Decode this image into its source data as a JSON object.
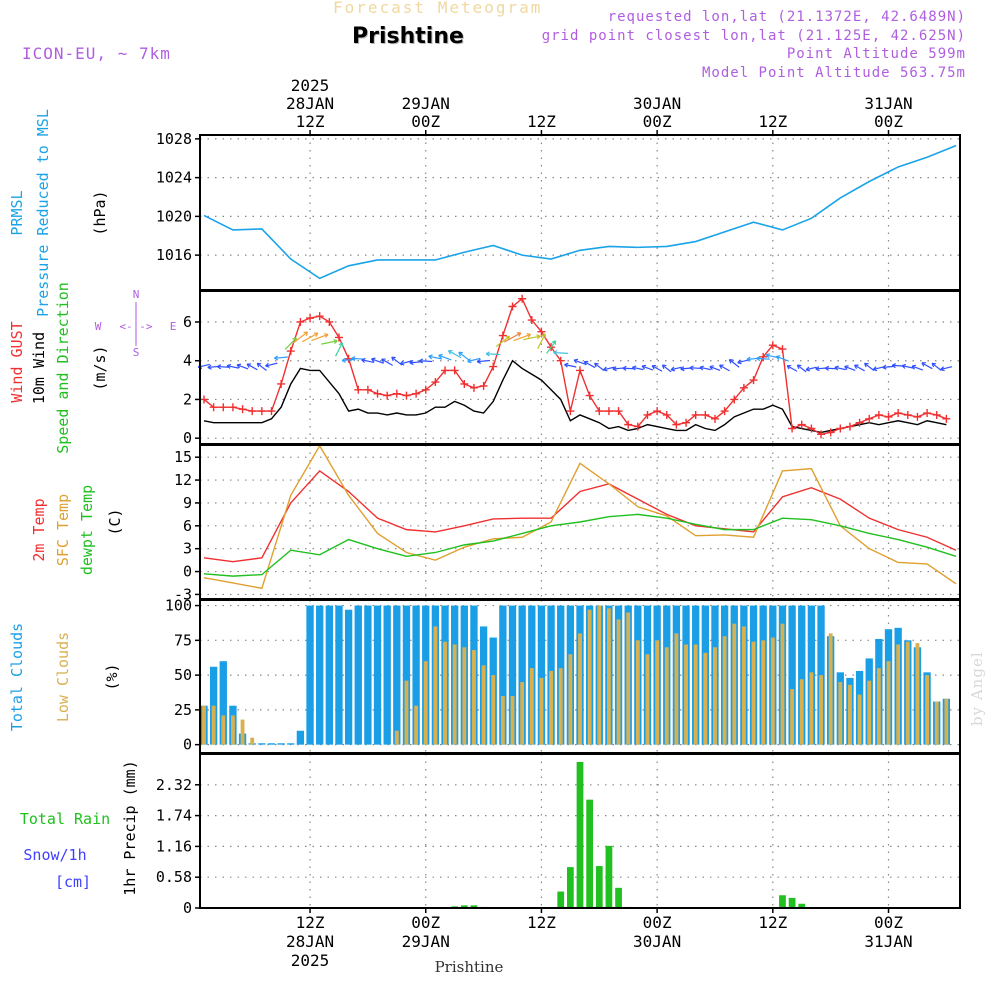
{
  "header": {
    "title": "Forecast Meteogram",
    "station": "Prishtine",
    "model": "ICON-EU, ~ 7km",
    "requested": "requested lon,lat (21.1372E, 42.6489N)",
    "grid_point": "grid point closest lon,lat (21.125E, 42.625N)",
    "point_altitude": "Point Altitude 599m",
    "model_altitude": "Model Point Altitude 563.75m"
  },
  "footer_label": "Prishtine",
  "watermark": "by Angel",
  "colors": {
    "pressure": "#1aa3e8",
    "gust": "#f03030",
    "wind": "#000000",
    "temp": "#f03030",
    "sfc_temp": "#e0a030",
    "dewpt": "#20c020",
    "total_clouds": "#1a9fe6",
    "low_clouds": "#d8b050",
    "rain": "#20c020",
    "snow": "#4040ff",
    "compass": "#b05ee0",
    "grid": "#888888"
  },
  "chart_data": [
    {
      "type": "line",
      "title": "PRMSL Pressure Reduced to MSL",
      "ylabel": "(hPa)",
      "ylim": [
        1012.4,
        1028.4
      ],
      "yticks": [
        1016,
        1020,
        1024,
        1028
      ],
      "x_hours": [
        0,
        3,
        6,
        9,
        12,
        15,
        18,
        21,
        24,
        27,
        30,
        33,
        36,
        39,
        42,
        45,
        48,
        51,
        54,
        57,
        60,
        63,
        66,
        69,
        72,
        75,
        78
      ],
      "values": [
        1020.1,
        1018.6,
        1018.7,
        1015.6,
        1013.6,
        1014.9,
        1015.5,
        1015.5,
        1015.5,
        1016.3,
        1017.0,
        1016.0,
        1015.6,
        1016.5,
        1016.9,
        1016.8,
        1016.9,
        1017.4,
        1018.4,
        1019.4,
        1018.6,
        1019.8,
        1021.9,
        1023.6,
        1025.1,
        1026.1,
        1027.3
      ]
    },
    {
      "type": "line",
      "title": "Wind GUST / 10m Wind Speed and Direction",
      "ylabel": "(m/s)",
      "ylim": [
        -0.3,
        7.6
      ],
      "yticks": [
        0,
        2,
        4,
        6
      ],
      "compass": {
        "n": "N",
        "s": "S",
        "w": "W",
        "e": "E",
        "symbol": "<-|->"
      },
      "x_hours": [
        0,
        1,
        2,
        3,
        4,
        5,
        6,
        7,
        8,
        9,
        10,
        11,
        12,
        13,
        14,
        15,
        16,
        17,
        18,
        19,
        20,
        21,
        22,
        23,
        24,
        25,
        26,
        27,
        28,
        29,
        30,
        31,
        32,
        33,
        34,
        35,
        36,
        37,
        38,
        39,
        40,
        41,
        42,
        43,
        44,
        45,
        46,
        47,
        48,
        49,
        50,
        51,
        52,
        53,
        54,
        55,
        56,
        57,
        58,
        59,
        60,
        61,
        62,
        63,
        64,
        65,
        66,
        67,
        68,
        69,
        70,
        71,
        72,
        73,
        74,
        75,
        76,
        77
      ],
      "series": [
        {
          "name": "Wind GUST",
          "values": [
            2.0,
            1.6,
            1.6,
            1.6,
            1.5,
            1.4,
            1.4,
            1.4,
            2.8,
            4.5,
            6.0,
            6.2,
            6.3,
            6.0,
            5.2,
            4.1,
            2.5,
            2.5,
            2.3,
            2.2,
            2.3,
            2.2,
            2.3,
            2.5,
            2.9,
            3.5,
            3.5,
            2.8,
            2.6,
            2.7,
            3.7,
            5.3,
            6.8,
            7.2,
            6.1,
            5.5,
            4.7,
            4.0,
            1.4,
            3.5,
            2.2,
            1.4,
            1.4,
            1.4,
            0.7,
            0.6,
            1.2,
            1.4,
            1.2,
            0.7,
            0.8,
            1.2,
            1.2,
            1.0,
            1.4,
            2.0,
            2.6,
            3.0,
            4.2,
            4.8,
            4.6,
            0.5,
            0.7,
            0.5,
            0.2,
            0.3,
            0.5,
            0.6,
            0.8,
            1.0,
            1.2,
            1.1,
            1.3,
            1.2,
            1.1,
            1.3,
            1.2,
            1.0
          ]
        },
        {
          "name": "10m Wind",
          "values": [
            0.9,
            0.8,
            0.8,
            0.8,
            0.8,
            0.8,
            0.8,
            1.0,
            1.6,
            2.8,
            3.6,
            3.5,
            3.5,
            2.9,
            2.3,
            1.4,
            1.5,
            1.3,
            1.3,
            1.2,
            1.3,
            1.2,
            1.2,
            1.3,
            1.6,
            1.6,
            1.9,
            1.7,
            1.4,
            1.3,
            1.9,
            3.0,
            4.0,
            3.6,
            3.3,
            3.0,
            2.5,
            2.0,
            0.9,
            1.2,
            1.0,
            0.8,
            0.5,
            0.6,
            0.4,
            0.5,
            0.7,
            0.6,
            0.5,
            0.4,
            0.4,
            0.7,
            0.5,
            0.4,
            0.7,
            1.1,
            1.3,
            1.5,
            1.5,
            1.7,
            1.5,
            0.6,
            0.5,
            0.4,
            0.3,
            0.4,
            0.5,
            0.6,
            0.7,
            0.8,
            0.7,
            0.8,
            0.9,
            0.8,
            0.7,
            0.9,
            0.8,
            0.7
          ]
        }
      ]
    },
    {
      "type": "line",
      "title": "2m Temp / SFC Temp / dewpt Temp",
      "ylabel": "(C)",
      "ylim": [
        -3.6,
        16.6
      ],
      "yticks": [
        -3,
        0,
        3,
        6,
        9,
        12,
        15
      ],
      "x_hours": [
        0,
        3,
        6,
        9,
        12,
        15,
        18,
        21,
        24,
        27,
        30,
        33,
        36,
        39,
        42,
        45,
        48,
        51,
        54,
        57,
        60,
        63,
        66,
        69,
        72,
        75,
        78
      ],
      "series": [
        {
          "name": "2m Temp",
          "values": [
            1.8,
            1.3,
            1.8,
            9.0,
            13.2,
            10.5,
            7.0,
            5.5,
            5.2,
            6.0,
            6.9,
            7.0,
            7.0,
            10.5,
            11.5,
            9.5,
            7.5,
            6.0,
            5.6,
            5.2,
            9.8,
            11.0,
            9.5,
            7.0,
            5.5,
            4.5,
            2.8
          ]
        },
        {
          "name": "SFC Temp",
          "values": [
            -0.8,
            -1.5,
            -2.2,
            10.0,
            16.5,
            10.0,
            5.0,
            2.5,
            1.5,
            3.2,
            4.3,
            4.5,
            6.5,
            14.2,
            11.5,
            8.5,
            7.3,
            4.7,
            4.8,
            4.5,
            13.2,
            13.5,
            6.0,
            3.0,
            1.2,
            1.0,
            -1.6
          ]
        },
        {
          "name": "dewpt Temp",
          "values": [
            -0.3,
            -0.6,
            -0.4,
            2.8,
            2.2,
            4.2,
            3.0,
            2.0,
            2.5,
            3.5,
            4.0,
            5.0,
            6.0,
            6.5,
            7.2,
            7.5,
            7.0,
            6.2,
            5.5,
            5.5,
            7.0,
            6.8,
            6.0,
            5.0,
            4.2,
            3.2,
            2.0
          ]
        }
      ]
    },
    {
      "type": "bar",
      "title": "Total Clouds / Low Clouds",
      "ylabel": "(%)",
      "ylim": [
        -6,
        104
      ],
      "yticks": [
        0,
        25,
        50,
        75,
        100
      ],
      "x_hours": [
        0,
        1,
        2,
        3,
        4,
        5,
        6,
        7,
        8,
        9,
        10,
        11,
        12,
        13,
        14,
        15,
        16,
        17,
        18,
        19,
        20,
        21,
        22,
        23,
        24,
        25,
        26,
        27,
        28,
        29,
        30,
        31,
        32,
        33,
        34,
        35,
        36,
        37,
        38,
        39,
        40,
        41,
        42,
        43,
        44,
        45,
        46,
        47,
        48,
        49,
        50,
        51,
        52,
        53,
        54,
        55,
        56,
        57,
        58,
        59,
        60,
        61,
        62,
        63,
        64,
        65,
        66,
        67,
        68,
        69,
        70,
        71,
        72,
        73,
        74,
        75,
        76,
        77
      ],
      "series": [
        {
          "name": "Total Clouds",
          "values": [
            28,
            56,
            60,
            28,
            8,
            1,
            1,
            1,
            1,
            1,
            10,
            100,
            100,
            100,
            100,
            97,
            100,
            100,
            100,
            100,
            100,
            100,
            100,
            100,
            100,
            100,
            100,
            100,
            100,
            85,
            77,
            100,
            100,
            100,
            100,
            100,
            100,
            100,
            100,
            100,
            100,
            100,
            100,
            100,
            100,
            100,
            100,
            100,
            100,
            100,
            100,
            100,
            100,
            100,
            100,
            100,
            100,
            100,
            100,
            100,
            100,
            100,
            100,
            100,
            100,
            78,
            52,
            48,
            53,
            62,
            76,
            83,
            84,
            75,
            70,
            52,
            31,
            33
          ]
        },
        {
          "name": "Low Clouds",
          "values": [
            28,
            28,
            21,
            21,
            18,
            5,
            0,
            0,
            0,
            0,
            0,
            0,
            0,
            0,
            0,
            0,
            0,
            0,
            0,
            0,
            10,
            46,
            28,
            60,
            85,
            74,
            72,
            70,
            68,
            57,
            50,
            35,
            35,
            45,
            55,
            48,
            53,
            55,
            65,
            80,
            97,
            100,
            98,
            90,
            95,
            75,
            65,
            75,
            70,
            80,
            72,
            72,
            66,
            70,
            78,
            87,
            85,
            74,
            75,
            77,
            87,
            40,
            47,
            52,
            50,
            80,
            45,
            43,
            36,
            46,
            55,
            60,
            72,
            74,
            73,
            50,
            31,
            33
          ]
        }
      ]
    },
    {
      "type": "bar",
      "title": "1hr Precip (mm)",
      "ylabel": "1hr Precip (mm)",
      "ylim": [
        0,
        2.9
      ],
      "yticks": [
        0,
        0.58,
        1.16,
        1.74,
        2.32
      ],
      "ytick_labels": [
        "0",
        "0.58",
        "1.16",
        "1.74",
        "2.32"
      ],
      "legend": {
        "total": "Total  Rain",
        "snow": "Snow/1h",
        "unit": "[cm]"
      },
      "x_hours": [
        26,
        27,
        28,
        29,
        37,
        38,
        39,
        40,
        41,
        42,
        43,
        44,
        60,
        61,
        62
      ],
      "values": [
        0.03,
        0.05,
        0.05,
        0.02,
        0.31,
        0.77,
        2.75,
        2.04,
        0.79,
        1.17,
        0.38,
        0.02,
        0.24,
        0.19,
        0.08
      ]
    }
  ],
  "x_axis": {
    "hours_span": [
      0,
      78
    ],
    "ticks": [
      {
        "hour": 11,
        "top": [
          "2025",
          "28JAN",
          "12Z"
        ],
        "bottom": [
          "12Z",
          "28JAN",
          "2025"
        ]
      },
      {
        "hour": 23,
        "top": [
          "29JAN",
          "00Z"
        ],
        "bottom": [
          "00Z",
          "29JAN"
        ]
      },
      {
        "hour": 35,
        "top": [
          "12Z"
        ],
        "bottom": [
          "12Z"
        ]
      },
      {
        "hour": 47,
        "top": [
          "30JAN",
          "00Z"
        ],
        "bottom": [
          "00Z",
          "30JAN"
        ]
      },
      {
        "hour": 59,
        "top": [
          "12Z"
        ],
        "bottom": [
          "12Z"
        ]
      },
      {
        "hour": 71,
        "top": [
          "31JAN",
          "00Z"
        ],
        "bottom": [
          "00Z",
          "31JAN"
        ]
      }
    ]
  }
}
